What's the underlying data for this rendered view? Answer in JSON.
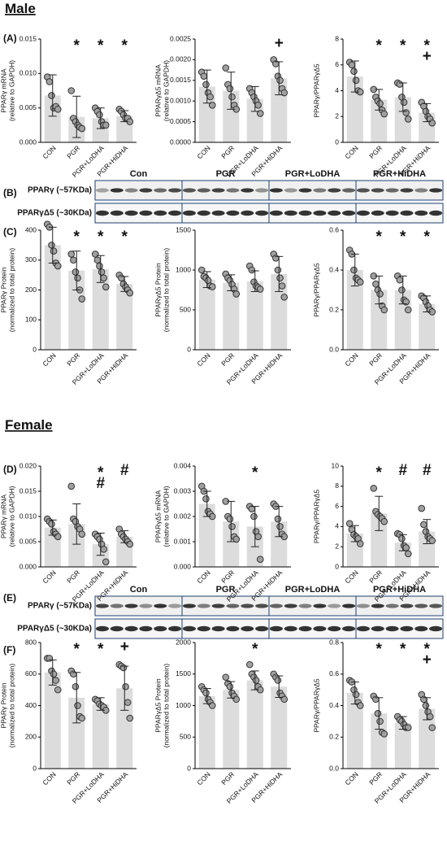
{
  "sections": [
    "Male",
    "Female"
  ],
  "panel_labels": [
    "(A)",
    "(B)",
    "(C)",
    "(D)",
    "(E)",
    "(F)"
  ],
  "blots": [
    {
      "groups": [
        "Con",
        "PGR",
        "PGR+LoDHA",
        "PGR+HiDHA"
      ],
      "rows": [
        "PPARγ (~57KDa)",
        "PPARγΔ5 (~30KDa)"
      ]
    },
    {
      "groups": [
        "Con",
        "PGR",
        "PGR+LoDHA",
        "PGR+HiDHA"
      ],
      "rows": [
        "PPARγ (~57KDa)",
        "PPARγΔ5 (~30KDa)"
      ]
    }
  ],
  "chart_data": [
    {
      "type": "bar",
      "ylabel": [
        "PPARγ mRNA",
        "(relative to GAPDH)"
      ],
      "categories": [
        "CON",
        "PGR",
        "PGR+LoDHA",
        "PGR+HiDHA"
      ],
      "color": "#dcdcdc",
      "point_color": "#a0a0a0",
      "values": [
        0.0068,
        0.0037,
        0.0035,
        0.0038
      ],
      "errors": [
        0.003,
        0.003,
        0.0015,
        0.0008
      ],
      "points": [
        [
          0.0095,
          0.0088,
          0.0068,
          0.005,
          0.0052,
          0.0048
        ],
        [
          0.0075,
          0.0035,
          0.003,
          0.0025,
          0.0022,
          0.002
        ],
        [
          0.005,
          0.0045,
          0.004,
          0.003,
          0.0025,
          0.0025
        ],
        [
          0.0048,
          0.0045,
          0.004,
          0.0035,
          0.0035,
          0.003
        ]
      ],
      "annotations": [
        [],
        [
          "*"
        ],
        [
          "*"
        ],
        [
          "*"
        ]
      ],
      "ylim": [
        0,
        0.015
      ],
      "yticks": [
        {
          "value": 0,
          "label": "0.000"
        },
        0.005,
        {
          "value": 0.01,
          "label": "0.010"
        },
        0.015
      ]
    },
    {
      "type": "bar",
      "ylabel": [
        "PPARγΔ5 mRNA",
        "(relative to GAPDH)"
      ],
      "categories": [
        "CON",
        "PGR",
        "PGR+LoDHA",
        "PGR+HiDHA"
      ],
      "color": "#dcdcdc",
      "point_color": "#a0a0a0",
      "values": [
        0.00135,
        0.00125,
        0.00105,
        0.00155
      ],
      "errors": [
        0.0004,
        0.00045,
        0.0003,
        0.0004
      ],
      "points": [
        [
          0.0017,
          0.0016,
          0.0014,
          0.0012,
          0.0011,
          0.0009
        ],
        [
          0.0018,
          0.0014,
          0.0013,
          0.0011,
          0.0009,
          0.0008
        ],
        [
          0.0013,
          0.0012,
          0.0011,
          0.001,
          0.0009,
          0.0007
        ],
        [
          0.002,
          0.0019,
          0.0016,
          0.0015,
          0.0013,
          0.0012
        ]
      ],
      "annotations": [
        [],
        [],
        [],
        [
          "+"
        ]
      ],
      "ylim": [
        0,
        0.0025
      ],
      "yticks": [
        {
          "value": 0,
          "label": "0.0000"
        },
        0.0005,
        {
          "value": 0.001,
          "label": "0.0010"
        },
        0.0015,
        {
          "value": 0.002,
          "label": "0.0020"
        },
        0.0025
      ]
    },
    {
      "type": "bar",
      "ylabel": [
        "PPARγ/PPARγΔ5"
      ],
      "categories": [
        "CON",
        "PGR",
        "PGR+LoDHA",
        "PGR+HiDHA"
      ],
      "color": "#dcdcdc",
      "point_color": "#a0a0a0",
      "values": [
        5.1,
        3.3,
        3.5,
        2.3
      ],
      "errors": [
        1.2,
        0.8,
        1.1,
        0.7
      ],
      "points": [
        [
          6.2,
          6,
          5.5,
          4.8,
          4,
          3.9
        ],
        [
          4.1,
          3.5,
          3.2,
          3,
          2.5,
          2.2
        ],
        [
          4.6,
          4.5,
          3.5,
          3.1,
          2.3,
          1.8
        ],
        [
          3.1,
          2.8,
          2.4,
          2,
          1.8,
          1.5
        ]
      ],
      "annotations": [
        [],
        [
          "*"
        ],
        [
          "*"
        ],
        [
          "*",
          "+"
        ]
      ],
      "ylim": [
        0,
        8
      ],
      "yticks": [
        0,
        2,
        4,
        6,
        8
      ]
    },
    {
      "type": "bar",
      "ylabel": [
        "PPARγ Protein",
        "(normalized to total protein)"
      ],
      "categories": [
        "CON",
        "PGR",
        "PGR+LoDHA",
        "PGR+HiDHA"
      ],
      "color": "#dcdcdc",
      "point_color": "#a0a0a0",
      "values": [
        350,
        265,
        270,
        220
      ],
      "errors": [
        60,
        65,
        45,
        25
      ],
      "points": [
        [
          420,
          410,
          350,
          330,
          290,
          280
        ],
        [
          320,
          300,
          260,
          240,
          200,
          170
        ],
        [
          320,
          300,
          280,
          260,
          240,
          210
        ],
        [
          250,
          240,
          220,
          210,
          200,
          190
        ]
      ],
      "annotations": [
        [],
        [
          "*"
        ],
        [
          "*"
        ],
        [
          "*"
        ]
      ],
      "ylim": [
        0,
        400
      ],
      "yticks": [
        0,
        100,
        200,
        300,
        400
      ]
    },
    {
      "type": "bar",
      "ylabel": [
        "PPARγΔ5 Protein",
        "(normalized to total protein)"
      ],
      "categories": [
        "CON",
        "PGR",
        "PGR+LoDHA",
        "PGR+HiDHA"
      ],
      "color": "#dcdcdc",
      "point_color": "#a0a0a0",
      "values": [
        880,
        840,
        860,
        950
      ],
      "errors": [
        100,
        100,
        130,
        220
      ],
      "points": [
        [
          1000,
          920,
          900,
          870,
          800,
          790
        ],
        [
          950,
          900,
          870,
          820,
          760,
          700
        ],
        [
          1050,
          1000,
          850,
          800,
          780,
          760
        ],
        [
          1200,
          1150,
          1000,
          900,
          800,
          660
        ]
      ],
      "annotations": [
        [],
        [],
        [],
        []
      ],
      "ylim": [
        0,
        1500
      ],
      "yticks": [
        0,
        500,
        1000,
        1500
      ]
    },
    {
      "type": "bar",
      "ylabel": [
        "PPARγ/PPARγΔ5"
      ],
      "categories": [
        "CON",
        "PGR",
        "PGR+LoDHA",
        "PGR+HiDHA"
      ],
      "color": "#dcdcdc",
      "point_color": "#a0a0a0",
      "values": [
        0.4,
        0.3,
        0.3,
        0.23
      ],
      "errors": [
        0.08,
        0.07,
        0.07,
        0.04
      ],
      "points": [
        [
          0.5,
          0.48,
          0.4,
          0.36,
          0.35,
          0.34
        ],
        [
          0.37,
          0.33,
          0.3,
          0.28,
          0.22,
          0.2
        ],
        [
          0.37,
          0.35,
          0.3,
          0.25,
          0.24,
          0.2
        ],
        [
          0.27,
          0.26,
          0.24,
          0.22,
          0.2,
          0.19
        ]
      ],
      "annotations": [
        [],
        [
          "*"
        ],
        [
          "*"
        ],
        [
          "*"
        ]
      ],
      "ylim": [
        0,
        0.6
      ],
      "yticks": [
        {
          "value": 0,
          "label": "0.0"
        },
        0.2,
        0.4,
        0.6
      ]
    },
    {
      "type": "bar",
      "ylabel": [
        "PPARγ mRNA",
        "(relative to GAPDH)"
      ],
      "categories": [
        "CON",
        "PGR",
        "PGR+LoDHA",
        "PGR+HiDHA"
      ],
      "color": "#dcdcdc",
      "point_color": "#a0a0a0",
      "values": [
        0.0078,
        0.0085,
        0.0045,
        0.006
      ],
      "errors": [
        0.0015,
        0.004,
        0.0022,
        0.0012
      ],
      "points": [
        [
          0.0095,
          0.009,
          0.0085,
          0.007,
          0.0065,
          0.006
        ],
        [
          0.016,
          0.0095,
          0.009,
          0.008,
          0.0075,
          0.0065
        ],
        [
          0.0065,
          0.006,
          0.0055,
          0.0045,
          0.0035,
          0.001
        ],
        [
          0.0075,
          0.0065,
          0.006,
          0.0055,
          0.005,
          0.0045
        ]
      ],
      "annotations": [
        [],
        [],
        [
          "*",
          "#"
        ],
        [
          "#"
        ]
      ],
      "ylim": [
        0,
        0.02
      ],
      "yticks": [
        {
          "value": 0,
          "label": "0.000"
        },
        0.005,
        {
          "value": 0.01,
          "label": "0.010"
        },
        0.015,
        {
          "value": 0.02,
          "label": "0.020"
        }
      ]
    },
    {
      "type": "bar",
      "ylabel": [
        "PPARγΔ5 mRNA",
        "(relative to GAPDH)"
      ],
      "categories": [
        "CON",
        "PGR",
        "PGR+LoDHA",
        "PGR+HiDHA"
      ],
      "color": "#dcdcdc",
      "point_color": "#a0a0a0",
      "values": [
        0.0025,
        0.0018,
        0.0016,
        0.0018
      ],
      "errors": [
        0.0005,
        0.0008,
        0.0008,
        0.0006
      ],
      "points": [
        [
          0.0032,
          0.003,
          0.0027,
          0.0022,
          0.0021,
          0.002
        ],
        [
          0.0026,
          0.002,
          0.0019,
          0.0016,
          0.0012,
          0.0011
        ],
        [
          0.0024,
          0.0023,
          0.002,
          0.0014,
          0.0012,
          0.0003
        ],
        [
          0.0025,
          0.0024,
          0.0019,
          0.0016,
          0.0013,
          0.0012
        ]
      ],
      "annotations": [
        [],
        [],
        [
          "*"
        ],
        []
      ],
      "ylim": [
        0,
        0.004
      ],
      "yticks": [
        {
          "value": 0,
          "label": "0.000"
        },
        0.001,
        0.002,
        0.003,
        0.004
      ]
    },
    {
      "type": "bar",
      "ylabel": [
        "PPARγ/PPARγΔ5"
      ],
      "categories": [
        "CON",
        "PGR",
        "PGR+LoDHA",
        "PGR+HiDHA"
      ],
      "color": "#dcdcdc",
      "point_color": "#a0a0a0",
      "values": [
        3.3,
        5.3,
        2.4,
        3.5
      ],
      "errors": [
        0.8,
        1.7,
        0.8,
        1.2
      ],
      "points": [
        [
          4.3,
          3.7,
          3.2,
          3,
          2.8,
          2.3
        ],
        [
          7.8,
          5.5,
          5.2,
          5,
          4.8,
          4.5
        ],
        [
          3.3,
          3.2,
          2.8,
          2.1,
          1.9,
          1.3
        ],
        [
          5.8,
          4.2,
          3.5,
          3,
          2.8,
          2.6
        ]
      ],
      "annotations": [
        [],
        [
          "*"
        ],
        [
          "#"
        ],
        [
          "#"
        ]
      ],
      "ylim": [
        0,
        10
      ],
      "yticks": [
        0,
        2,
        4,
        6,
        8,
        10
      ]
    },
    {
      "type": "bar",
      "ylabel": [
        "PPARγ Protein",
        "(normalized to total protein)"
      ],
      "categories": [
        "CON",
        "PGR",
        "PGR+LoDHA",
        "PGR+HiDHA"
      ],
      "color": "#dcdcdc",
      "point_color": "#a0a0a0",
      "values": [
        610,
        450,
        410,
        510
      ],
      "errors": [
        80,
        160,
        40,
        140
      ],
      "points": [
        [
          700,
          700,
          620,
          600,
          560,
          500
        ],
        [
          620,
          600,
          520,
          400,
          330,
          320
        ],
        [
          440,
          430,
          410,
          400,
          390,
          370
        ],
        [
          660,
          650,
          640,
          520,
          420,
          320
        ]
      ],
      "annotations": [
        [],
        [
          "*"
        ],
        [
          "*"
        ],
        [
          "+"
        ]
      ],
      "ylim": [
        0,
        800
      ],
      "yticks": [
        0,
        200,
        400,
        600,
        800
      ]
    },
    {
      "type": "bar",
      "ylabel": [
        "PPARγΔ5 Protein",
        "(normalized to total protein)"
      ],
      "categories": [
        "CON",
        "PGR",
        "PGR+LoDHA",
        "PGR+HiDHA"
      ],
      "color": "#dcdcdc",
      "point_color": "#a0a0a0",
      "values": [
        1150,
        1250,
        1400,
        1300
      ],
      "errors": [
        120,
        130,
        150,
        170
      ],
      "points": [
        [
          1300,
          1250,
          1200,
          1100,
          1050,
          1000
        ],
        [
          1450,
          1350,
          1300,
          1200,
          1150,
          1100
        ],
        [
          1650,
          1500,
          1450,
          1400,
          1300,
          1250
        ],
        [
          1500,
          1450,
          1400,
          1200,
          1150,
          1100
        ]
      ],
      "annotations": [
        [],
        [],
        [
          "*"
        ],
        []
      ],
      "ylim": [
        0,
        2000
      ],
      "yticks": [
        0,
        500,
        1000,
        1500,
        2000
      ]
    },
    {
      "type": "bar",
      "ylabel": [
        "PPARγ/PPARγΔ5"
      ],
      "categories": [
        "CON",
        "PGR",
        "PGR+LoDHA",
        "PGR+HiDHA"
      ],
      "color": "#dcdcdc",
      "point_color": "#a0a0a0",
      "values": [
        0.48,
        0.35,
        0.29,
        0.38
      ],
      "errors": [
        0.07,
        0.1,
        0.04,
        0.07
      ],
      "points": [
        [
          0.56,
          0.55,
          0.5,
          0.47,
          0.42,
          0.4
        ],
        [
          0.46,
          0.44,
          0.35,
          0.3,
          0.23,
          0.22
        ],
        [
          0.33,
          0.31,
          0.3,
          0.28,
          0.26,
          0.26
        ],
        [
          0.47,
          0.44,
          0.4,
          0.36,
          0.33,
          0.26
        ]
      ],
      "annotations": [
        [],
        [
          "*"
        ],
        [
          "*"
        ],
        [
          "*",
          "+"
        ]
      ],
      "ylim": [
        0,
        0.8
      ],
      "yticks": [
        {
          "value": 0,
          "label": "0.0"
        },
        0.2,
        0.4,
        0.6,
        0.8
      ]
    }
  ]
}
